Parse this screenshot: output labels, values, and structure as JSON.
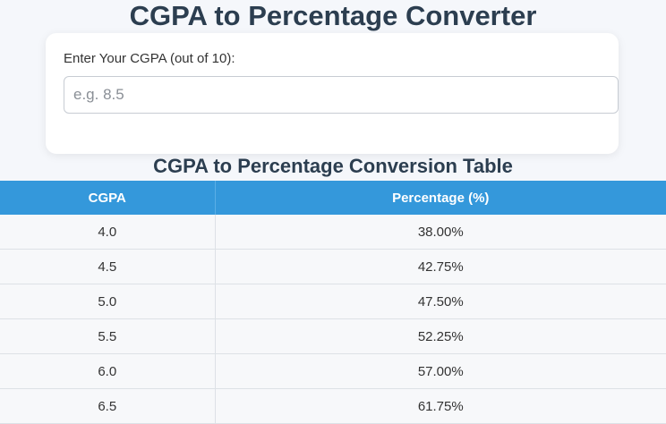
{
  "title": "CGPA to Percentage Converter",
  "converter": {
    "label": "Enter Your CGPA (out of 10):",
    "input_value": "",
    "input_placeholder": "e.g. 8.5"
  },
  "table": {
    "title": "CGPA to Percentage Conversion Table",
    "headers": [
      "CGPA",
      "Percentage (%)"
    ],
    "rows": [
      [
        "4.0",
        "38.00%"
      ],
      [
        "4.5",
        "42.75%"
      ],
      [
        "5.0",
        "47.50%"
      ],
      [
        "5.5",
        "52.25%"
      ],
      [
        "6.0",
        "57.00%"
      ],
      [
        "6.5",
        "61.75%"
      ]
    ]
  },
  "colors": {
    "header_bg": "#3498db",
    "title_text": "#2c3e50",
    "page_bg": "#f5f7fb"
  }
}
